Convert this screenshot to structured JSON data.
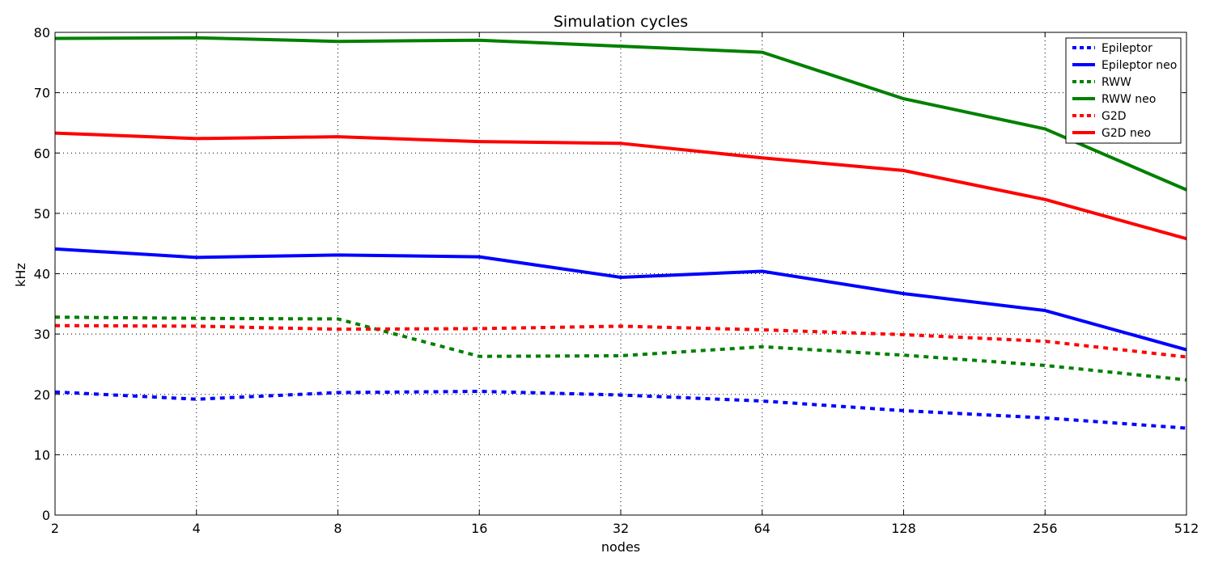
{
  "chart_data": {
    "type": "line",
    "title": "Simulation cycles",
    "xlabel": "nodes",
    "ylabel": "kHz",
    "x_scale": "log2",
    "x": [
      2,
      4,
      8,
      16,
      32,
      64,
      128,
      256,
      512
    ],
    "x_tick_labels": [
      "2",
      "4",
      "8",
      "16",
      "32",
      "64",
      "128",
      "256",
      "512"
    ],
    "ylim": [
      0,
      80
    ],
    "y_ticks": [
      0,
      10,
      20,
      30,
      40,
      50,
      60,
      70,
      80
    ],
    "grid": true,
    "legend_position": "top-right",
    "series": [
      {
        "name": "Epileptor",
        "style": "dashed",
        "color": "#0000ff",
        "values": [
          20.4,
          19.2,
          20.3,
          20.5,
          19.9,
          18.9,
          17.3,
          16.1,
          14.4
        ]
      },
      {
        "name": "Epileptor neo",
        "style": "solid",
        "color": "#0000ff",
        "values": [
          44.1,
          42.7,
          43.1,
          42.8,
          39.4,
          40.4,
          36.7,
          33.9,
          27.4
        ]
      },
      {
        "name": "RWW",
        "style": "dashed",
        "color": "#008000",
        "values": [
          32.8,
          32.6,
          32.5,
          26.3,
          26.4,
          27.9,
          26.5,
          24.8,
          22.4
        ]
      },
      {
        "name": "RWW neo",
        "style": "solid",
        "color": "#008000",
        "values": [
          79.0,
          79.1,
          78.5,
          78.7,
          77.7,
          76.7,
          69.0,
          64.0,
          53.9
        ]
      },
      {
        "name": "G2D",
        "style": "dashed",
        "color": "#ff0000",
        "values": [
          31.4,
          31.3,
          30.8,
          30.9,
          31.3,
          30.7,
          29.9,
          28.8,
          26.2
        ]
      },
      {
        "name": "G2D neo",
        "style": "solid",
        "color": "#ff0000",
        "values": [
          63.3,
          62.4,
          62.7,
          61.9,
          61.6,
          59.2,
          57.1,
          52.3,
          45.8
        ]
      }
    ]
  }
}
